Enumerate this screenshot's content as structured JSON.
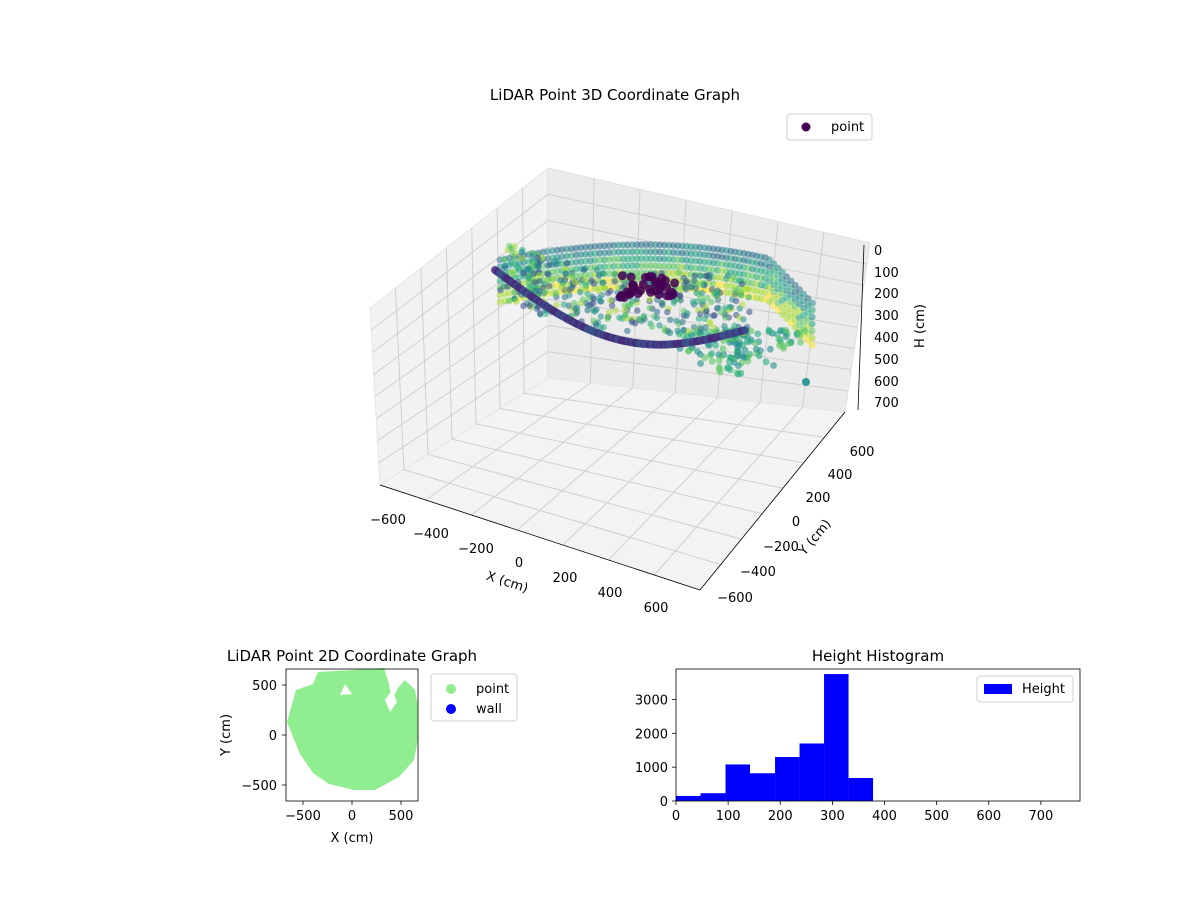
{
  "chart_data": [
    {
      "type": "scatter",
      "title": "LiDAR Point 3D Coordinate Graph",
      "xlabel": "X (cm)",
      "ylabel": "Y (cm)",
      "zlabel": "H (cm)",
      "legend": {
        "placement": "top-right",
        "entries": [
          "point"
        ]
      },
      "colormap": "viridis",
      "x_ticks": [
        "−600",
        "−400",
        "−200",
        "0",
        "200",
        "400",
        "600"
      ],
      "y_ticks": [
        "−600",
        "−400",
        "−200",
        "0",
        "200",
        "400",
        "600"
      ],
      "z_ticks": [
        "0",
        "100",
        "200",
        "300",
        "400",
        "500",
        "600",
        "700"
      ],
      "xlim": [
        -650,
        650
      ],
      "ylim": [
        -650,
        650
      ],
      "zlim": [
        0,
        760
      ],
      "z_inverted": true,
      "grid": true
    },
    {
      "type": "scatter",
      "title": "LiDAR Point 2D Coordinate Graph",
      "xlabel": "X (cm)",
      "ylabel": "Y (cm)",
      "x_ticks": [
        "−500",
        "0",
        "500"
      ],
      "y_ticks": [
        "500",
        "0",
        "−500"
      ],
      "xlim": [
        -650,
        650
      ],
      "ylim": [
        -650,
        650
      ],
      "legend": {
        "placement": "outside-right",
        "entries": [
          "point",
          "wall"
        ]
      },
      "series": [
        {
          "name": "point",
          "color": "#90ee90"
        },
        {
          "name": "wall",
          "color": "#0000ff"
        }
      ]
    },
    {
      "type": "bar",
      "title": "Height Histogram",
      "x_ticks": [
        "0",
        "100",
        "200",
        "300",
        "400",
        "500",
        "600",
        "700"
      ],
      "y_ticks": [
        "0",
        "1000",
        "2000",
        "3000"
      ],
      "xlim": [
        0,
        775
      ],
      "ylim": [
        0,
        3900
      ],
      "legend": {
        "placement": "top-right",
        "entries": [
          "Height"
        ]
      },
      "color": "#0000ff",
      "bins": [
        {
          "x0": 0,
          "x1": 47,
          "count": 150
        },
        {
          "x0": 47,
          "x1": 95,
          "count": 230
        },
        {
          "x0": 95,
          "x1": 142,
          "count": 1080
        },
        {
          "x0": 142,
          "x1": 190,
          "count": 820
        },
        {
          "x0": 190,
          "x1": 237,
          "count": 1300
        },
        {
          "x0": 237,
          "x1": 284,
          "count": 1700
        },
        {
          "x0": 284,
          "x1": 331,
          "count": 3750
        },
        {
          "x0": 331,
          "x1": 378,
          "count": 680
        }
      ]
    }
  ]
}
